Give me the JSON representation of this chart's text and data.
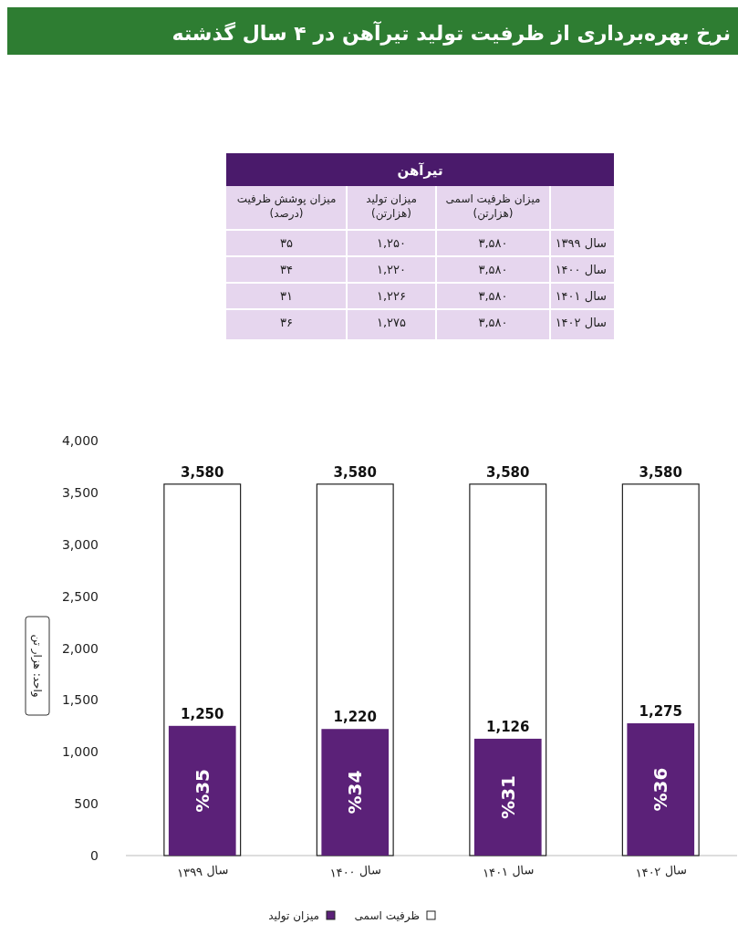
{
  "chart_data": {
    "type": "bar",
    "title": "نرخ بهره‌برداری از ظرفیت تولید تیرآهن در ۴ سال گذشته",
    "ylabel": "واحد: هزار تن",
    "categories": [
      "سال ۱۳۹۹",
      "سال ۱۴۰۰",
      "سال ۱۴۰۱",
      "سال ۱۴۰۲"
    ],
    "series": [
      {
        "name": "ظرفیت اسمی",
        "color": "#ffffff",
        "values": [
          3580,
          3580,
          3580,
          3580
        ],
        "value_labels": [
          "3,580",
          "3,580",
          "3,580",
          "3,580"
        ]
      },
      {
        "name": "میزان تولید",
        "color": "#5b2178",
        "values": [
          1250,
          1220,
          1126,
          1275
        ],
        "value_labels": [
          "1,250",
          "1,220",
          "1,126",
          "1,275"
        ]
      }
    ],
    "ylim": [
      0,
      4000
    ],
    "yticks": [
      {
        "value": 0,
        "label": "0"
      },
      {
        "value": 500,
        "label": "500"
      },
      {
        "value": 1000,
        "label": "1,000"
      },
      {
        "value": 1500,
        "label": "1,500"
      },
      {
        "value": 2000,
        "label": "2,000"
      },
      {
        "value": 2500,
        "label": "2,500"
      },
      {
        "value": 3000,
        "label": "3,000"
      },
      {
        "value": 3500,
        "label": "3,500"
      },
      {
        "value": 4000,
        "label": "4,000"
      }
    ],
    "grid": false,
    "legend": "bottom",
    "annotations": [
      "%35",
      "%34",
      "%31",
      "%36",
      "تیرآهن",
      "میزان ظرفیت اسمی\n(هزارتن)",
      "میزان تولید\n(هزارتن)",
      "میزان پوشش ظرفیت\n(درصد)",
      "سال ۱۳۹۹",
      "۳,۵۸۰",
      "۱,۲۵۰",
      "۳۵",
      "سال ۱۴۰۰",
      "۳,۵۸۰",
      "۱,۲۲۰",
      "۳۴",
      "سال ۱۴۰۱",
      "۳,۵۸۰",
      "۱,۲۲۶",
      "۳۱",
      "سال ۱۴۰۲",
      "۳,۵۸۰",
      "۱,۲۷۵",
      "۳۶"
    ]
  }
}
